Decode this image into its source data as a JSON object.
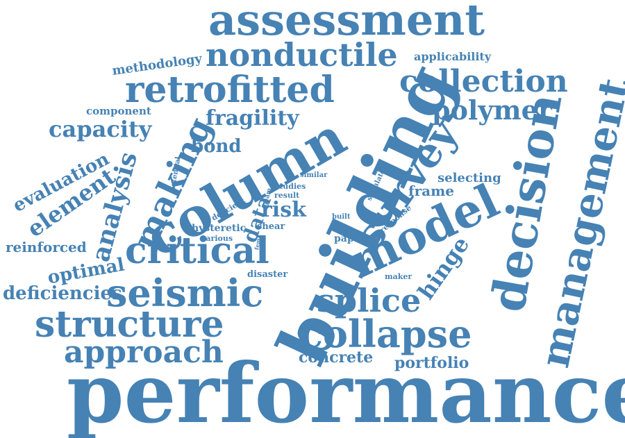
{
  "color": "#4682b4",
  "words": [
    "assessment",
    "nonductile",
    "applicability",
    "methodology",
    "retrofitted",
    "collection",
    "component",
    "fragility",
    "polymer",
    "capacity",
    "bond",
    "potential",
    "similar",
    "simulate",
    "selecting",
    "evaluation",
    "making",
    "column",
    "building",
    "survey",
    "frame",
    "management",
    "decision",
    "element",
    "analysis",
    "studies",
    "result",
    "beam",
    "data",
    "risk",
    "deficient",
    "built",
    "response",
    "hysteretic",
    "shear",
    "various",
    "fema",
    "paper",
    "model",
    "reinforced",
    "critical",
    "hinge",
    "optimal",
    "disaster",
    "maker",
    "deficiencies",
    "seismic",
    "splice",
    "structure",
    "collapse",
    "approach",
    "concrete",
    "portfolio",
    "performance"
  ]
}
